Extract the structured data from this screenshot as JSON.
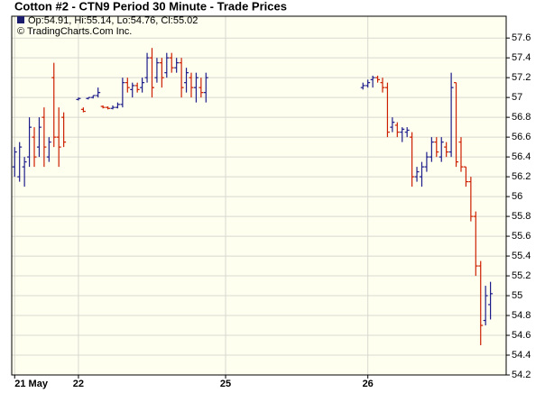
{
  "chart_data": {
    "type": "ohlc",
    "title": "Cotton #2 - CTN9 Period 30 Minute - Trade Prices",
    "legend_text": "Op:54.91, Hi:55.14, Lo:54.76, Cl:55.02",
    "copyright": "© TradingCharts.Com Inc.",
    "up_color": "#1c1c8a",
    "down_color": "#cc1f00",
    "legend_color": "#1c1c6e",
    "background": "#fffff0",
    "grid": true,
    "xlim": [
      -0.6,
      100.2
    ],
    "xticks": [
      {
        "value": 0,
        "label": "21 May"
      },
      {
        "value": 13,
        "label": "22"
      },
      {
        "value": 43,
        "label": "25"
      },
      {
        "value": 72,
        "label": "26"
      }
    ],
    "ylim": [
      54.2,
      57.82
    ],
    "yticks": [
      54.2,
      54.4,
      54.6,
      54.8,
      55,
      55.2,
      55.4,
      55.6,
      55.8,
      56,
      56.2,
      56.4,
      56.6,
      56.8,
      57,
      57.2,
      57.4,
      57.6
    ],
    "x": [
      0,
      1,
      2,
      3,
      4,
      5,
      6,
      7,
      8,
      9,
      10,
      13,
      14,
      15,
      16,
      17,
      18,
      19,
      20,
      21,
      22,
      23,
      24,
      25,
      26,
      27,
      28,
      29,
      30,
      31,
      32,
      33,
      34,
      35,
      36,
      37,
      38,
      39,
      71,
      72,
      73,
      74,
      75,
      76,
      77,
      78,
      79,
      80,
      81,
      82,
      83,
      84,
      85,
      86,
      87,
      88,
      89,
      90,
      91,
      92,
      93,
      94,
      95,
      96,
      97
    ],
    "open": [
      56.3,
      56.2,
      56.3,
      56.4,
      56.6,
      56.5,
      56.8,
      56.4,
      57.2,
      56.6,
      56.8,
      56.98,
      56.88,
      56.99,
      57.0,
      57.02,
      56.91,
      56.9,
      56.89,
      56.9,
      56.93,
      57.15,
      57.08,
      57.12,
      57.1,
      57.2,
      57.4,
      57.2,
      57.35,
      57.25,
      57.4,
      57.3,
      57.35,
      57.15,
      57.2,
      57.1,
      57.1,
      57.05,
      57.1,
      57.12,
      57.18,
      57.2,
      57.15,
      57.1,
      56.7,
      56.72,
      56.65,
      56.65,
      56.6,
      56.2,
      56.2,
      56.3,
      56.4,
      56.55,
      56.4,
      56.5,
      56.45,
      57.15,
      56.55,
      56.3,
      56.15,
      55.8,
      55.3,
      54.75,
      54.91
    ],
    "high": [
      56.5,
      56.55,
      56.4,
      56.8,
      56.7,
      56.8,
      56.9,
      56.6,
      57.35,
      56.9,
      56.85,
      57.0,
      56.9,
      57.0,
      57.02,
      57.1,
      56.92,
      56.91,
      56.92,
      56.95,
      57.2,
      57.2,
      57.15,
      57.15,
      57.2,
      57.45,
      57.5,
      57.4,
      57.4,
      57.45,
      57.45,
      57.4,
      57.4,
      57.3,
      57.25,
      57.25,
      57.2,
      57.25,
      57.15,
      57.18,
      57.22,
      57.22,
      57.2,
      57.15,
      56.8,
      56.75,
      56.7,
      56.7,
      56.65,
      56.3,
      56.35,
      56.45,
      56.6,
      56.6,
      56.6,
      56.55,
      57.25,
      57.15,
      56.6,
      56.3,
      56.2,
      55.85,
      55.35,
      55.1,
      55.14
    ],
    "low": [
      56.2,
      56.15,
      56.1,
      56.3,
      56.3,
      56.4,
      56.3,
      56.35,
      56.5,
      56.3,
      56.5,
      56.97,
      56.85,
      56.98,
      56.99,
      57.0,
      56.89,
      56.88,
      56.88,
      56.89,
      56.9,
      57.05,
      57.0,
      57.05,
      57.05,
      57.15,
      57.0,
      57.15,
      57.1,
      57.2,
      57.25,
      57.25,
      57.0,
      57.05,
      57.0,
      56.95,
      57.0,
      56.95,
      57.08,
      57.1,
      57.1,
      57.15,
      57.05,
      56.6,
      56.65,
      56.6,
      56.55,
      56.6,
      56.1,
      56.15,
      56.1,
      56.25,
      56.35,
      56.4,
      56.35,
      56.4,
      56.4,
      56.3,
      56.25,
      56.1,
      55.75,
      55.2,
      54.5,
      54.7,
      54.76
    ],
    "close": [
      56.45,
      56.5,
      56.35,
      56.7,
      56.4,
      56.7,
      56.5,
      56.55,
      56.6,
      56.5,
      56.55,
      56.99,
      56.86,
      57.0,
      57.02,
      57.05,
      56.9,
      56.89,
      56.9,
      56.93,
      57.15,
      57.1,
      57.12,
      57.08,
      57.15,
      57.4,
      57.1,
      57.35,
      57.2,
      57.4,
      57.3,
      57.35,
      57.1,
      57.25,
      57.1,
      57.2,
      57.05,
      57.2,
      57.12,
      57.15,
      57.2,
      57.18,
      57.1,
      56.65,
      56.75,
      56.65,
      56.68,
      56.67,
      56.2,
      56.25,
      56.3,
      56.4,
      56.55,
      56.45,
      56.55,
      56.45,
      57.1,
      56.35,
      56.3,
      56.15,
      55.8,
      55.3,
      54.7,
      55.0,
      55.02
    ]
  }
}
